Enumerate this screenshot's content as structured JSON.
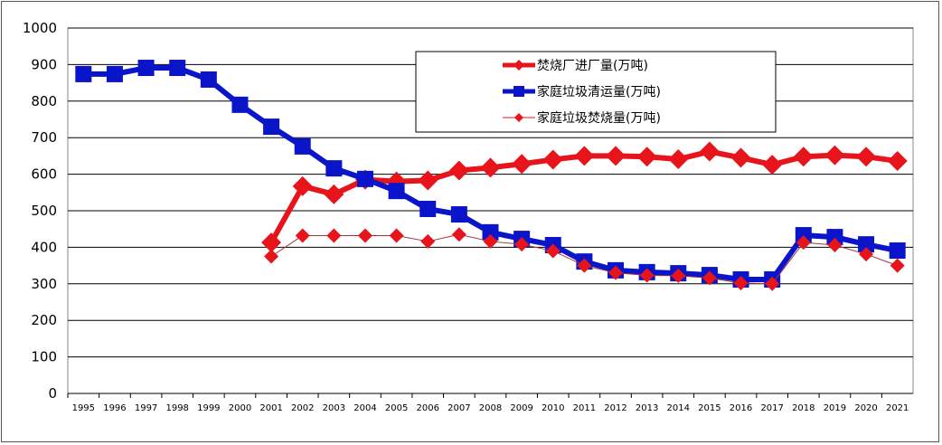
{
  "chart_data": {
    "type": "line",
    "title": "",
    "xlabel": "",
    "ylabel": "",
    "ylim": [
      0,
      1000
    ],
    "yticks": [
      0,
      100,
      200,
      300,
      400,
      500,
      600,
      700,
      800,
      900,
      1000
    ],
    "grid": true,
    "legend_placement": "top-center-right",
    "categories": [
      "1995",
      "1996",
      "1997",
      "1998",
      "1999",
      "2000",
      "2001",
      "2002",
      "2003",
      "2004",
      "2005",
      "2006",
      "2007",
      "2008",
      "2009",
      "2010",
      "2011",
      "2012",
      "2013",
      "2014",
      "2015",
      "2016",
      "2017",
      "2018",
      "2019",
      "2020",
      "2021"
    ],
    "series": [
      {
        "name": "焚烧厂进厂量(万吨)",
        "color": "#e8141b",
        "marker": "diamond",
        "style": "thick",
        "values": [
          null,
          null,
          null,
          null,
          null,
          null,
          413,
          567,
          545,
          585,
          580,
          583,
          610,
          618,
          628,
          640,
          650,
          650,
          648,
          641,
          662,
          645,
          626,
          648,
          652,
          648,
          636
        ]
      },
      {
        "name": "家庭垃圾清运量(万吨)",
        "color": "#0a14c8",
        "marker": "square",
        "style": "thick",
        "values": [
          874,
          874,
          891,
          891,
          859,
          790,
          730,
          676,
          616,
          587,
          554,
          505,
          490,
          441,
          423,
          406,
          361,
          337,
          332,
          329,
          324,
          312,
          312,
          433,
          428,
          408,
          391
        ]
      },
      {
        "name": "家庭垃圾焚烧量(万吨)",
        "color": "#e8141b",
        "marker": "diamond",
        "style": "thin",
        "values": [
          null,
          null,
          null,
          null,
          null,
          null,
          375,
          432,
          432,
          432,
          432,
          416,
          435,
          416,
          408,
          390,
          350,
          330,
          323,
          322,
          316,
          302,
          300,
          413,
          406,
          381,
          350
        ]
      }
    ]
  }
}
